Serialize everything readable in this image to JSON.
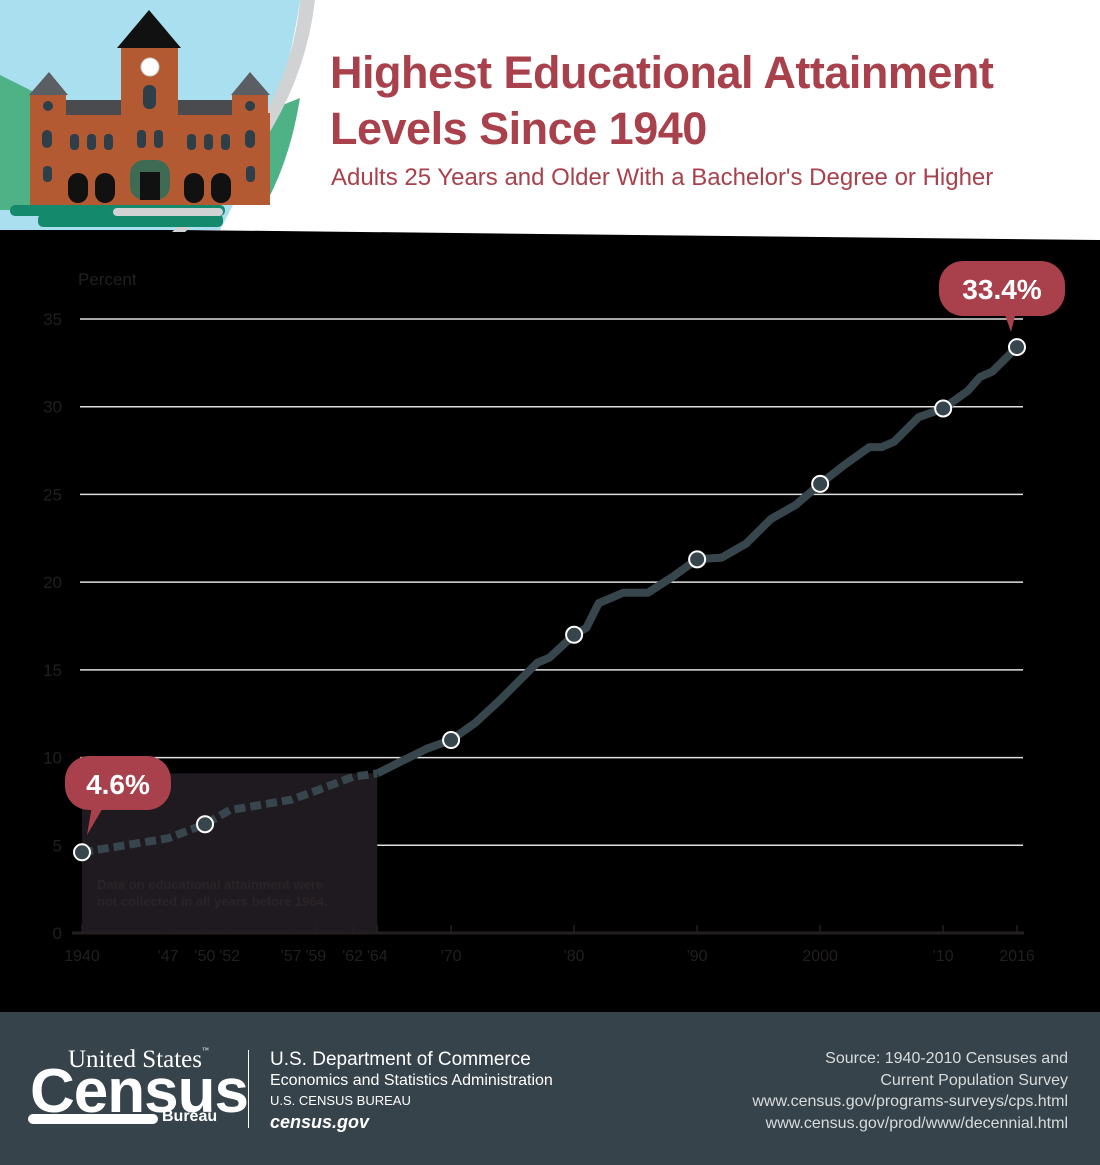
{
  "header": {
    "title_line1": "Highest Educational Attainment",
    "title_line2": "Levels Since 1940",
    "subtitle": "Adults 25 Years and Older With a Bachelor's Degree or Higher",
    "illustration": "schoolhouse-clocktower-icon"
  },
  "colors": {
    "accent": "#a8414c",
    "line": "#37464c",
    "chart_bg": "#000000",
    "axis_text": "#231f20",
    "footer_bg": "#36434a",
    "note_box": "#1f1a1f"
  },
  "chart_data": {
    "type": "line",
    "title": "Highest Educational Attainment Levels Since 1940",
    "subtitle": "Adults 25 Years and Older With a Bachelor's Degree or Higher",
    "xlabel": "",
    "ylabel": "Percent",
    "ylim": [
      0,
      35
    ],
    "yticks": [
      0,
      5,
      10,
      15,
      20,
      25,
      30,
      35
    ],
    "xticks": [
      1940,
      1947,
      1950,
      1952,
      1957,
      1959,
      1962,
      1964,
      1970,
      1980,
      1990,
      2000,
      2010,
      2016
    ],
    "xtick_labels": [
      "1940",
      "'47",
      "'50",
      "'52",
      "'57",
      "'59",
      "'62",
      "'64",
      "'70",
      "'80",
      "'90",
      "2000",
      "'10",
      "2016"
    ],
    "grid": true,
    "series": [
      {
        "name": "Bachelor's degree or higher",
        "dashed_before": 1964,
        "x": [
          1940,
          1947,
          1950,
          1952,
          1957,
          1959,
          1962,
          1964,
          1966,
          1968,
          1970,
          1972,
          1974,
          1976,
          1977,
          1978,
          1980,
          1981,
          1982,
          1984,
          1986,
          1988,
          1990,
          1992,
          1994,
          1996,
          1998,
          2000,
          2002,
          2004,
          2005,
          2006,
          2008,
          2010,
          2012,
          2013,
          2014,
          2016
        ],
        "values": [
          4.6,
          5.4,
          6.2,
          7.0,
          7.6,
          8.1,
          8.9,
          9.1,
          9.8,
          10.5,
          11.0,
          12.0,
          13.3,
          14.7,
          15.4,
          15.7,
          17.0,
          17.4,
          18.8,
          19.4,
          19.4,
          20.3,
          21.3,
          21.4,
          22.2,
          23.6,
          24.4,
          25.6,
          26.7,
          27.7,
          27.7,
          28.0,
          29.4,
          29.9,
          30.9,
          31.7,
          32.0,
          33.4
        ]
      }
    ],
    "markers": [
      {
        "x": 1940,
        "y": 4.6
      },
      {
        "x": 1950,
        "y": 6.2
      },
      {
        "x": 1970,
        "y": 11.0
      },
      {
        "x": 1980,
        "y": 17.0
      },
      {
        "x": 1990,
        "y": 21.3
      },
      {
        "x": 2000,
        "y": 25.6
      },
      {
        "x": 2010,
        "y": 29.9
      },
      {
        "x": 2016,
        "y": 33.4
      }
    ],
    "annotations": [
      {
        "text": "4.6%",
        "x": 1940,
        "y": 4.6
      },
      {
        "text": "33.4%",
        "x": 2016,
        "y": 33.4
      },
      {
        "text": "Data on educational attainment were not collected in all years before 1964.",
        "region": [
          1940,
          1964
        ]
      }
    ]
  },
  "chart": {
    "ylabel": "Percent",
    "callout_start": "4.6%",
    "callout_end": "33.4%",
    "note_line1": "Data on educational attainment were",
    "note_line2": "not collected in all years before 1964."
  },
  "footer": {
    "logo_line1": "United States",
    "logo_tm": "™",
    "logo_line2": "Census",
    "logo_line3": "Bureau",
    "dept_line1": "U.S. Department of Commerce",
    "dept_line2": "Economics and Statistics Administration",
    "dept_line3": "U.S. CENSUS BUREAU",
    "dept_line4": "census.gov",
    "source_line1": "Source:  1940-2010 Censuses and",
    "source_line2": "Current Population Survey",
    "source_line3": "www.census.gov/programs-surveys/cps.html",
    "source_line4": "www.census.gov/prod/www/decennial.html"
  }
}
